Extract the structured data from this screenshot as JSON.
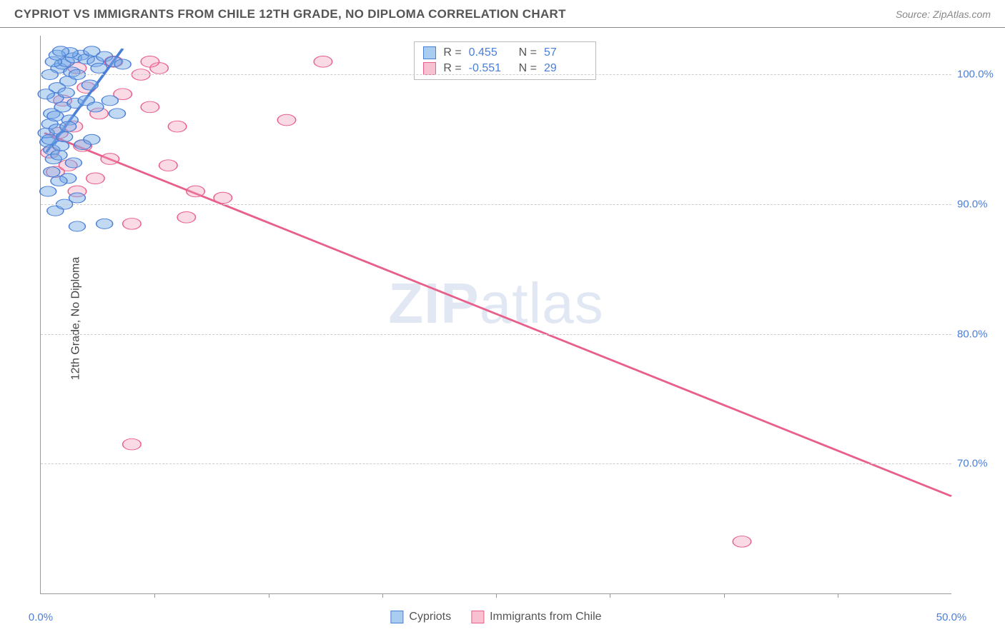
{
  "header": {
    "title": "CYPRIOT VS IMMIGRANTS FROM CHILE 12TH GRADE, NO DIPLOMA CORRELATION CHART",
    "source": "Source: ZipAtlas.com"
  },
  "axes": {
    "y_label": "12th Grade, No Diploma",
    "x_min": 0,
    "x_max": 50,
    "y_min": 60,
    "y_max": 103,
    "y_ticks": [
      70,
      80,
      90,
      100
    ],
    "x_ticks_minor": [
      6.25,
      12.5,
      18.75,
      25,
      31.25,
      37.5,
      43.75
    ],
    "x_ticks_labeled": [
      {
        "v": 0,
        "label": "0.0%"
      },
      {
        "v": 50,
        "label": "50.0%"
      }
    ]
  },
  "watermark": {
    "zip": "ZIP",
    "atlas": "atlas"
  },
  "stats": {
    "rows": [
      {
        "color_fill": "#a9cdf0",
        "color_border": "#4a7fd8",
        "r_label": "R =",
        "r": "0.455",
        "n_label": "N =",
        "n": "57"
      },
      {
        "color_fill": "#f7c1d1",
        "color_border": "#e85f8a",
        "r_label": "R =",
        "r": "-0.551",
        "n_label": "N =",
        "n": "29"
      }
    ]
  },
  "legend_bottom": [
    {
      "color_fill": "#a9cdf0",
      "color_border": "#4a7fd8",
      "label": "Cypriots"
    },
    {
      "color_fill": "#f7c1d1",
      "color_border": "#e85f8a",
      "label": "Immigrants from Chile"
    }
  ],
  "series": {
    "blue": {
      "fill": "rgba(120,170,230,0.45)",
      "stroke": "#4a7fd8",
      "radius": 9,
      "points": [
        [
          0.3,
          95.5
        ],
        [
          0.4,
          94.8
        ],
        [
          0.5,
          95.0
        ],
        [
          0.5,
          96.2
        ],
        [
          0.6,
          94.2
        ],
        [
          0.6,
          97.0
        ],
        [
          0.7,
          93.5
        ],
        [
          0.8,
          96.8
        ],
        [
          0.8,
          98.2
        ],
        [
          0.9,
          95.8
        ],
        [
          0.9,
          99.0
        ],
        [
          1.0,
          93.8
        ],
        [
          1.0,
          100.5
        ],
        [
          1.1,
          94.5
        ],
        [
          1.2,
          97.5
        ],
        [
          1.2,
          100.8
        ],
        [
          1.3,
          95.2
        ],
        [
          1.4,
          98.6
        ],
        [
          1.4,
          101.0
        ],
        [
          1.5,
          92.0
        ],
        [
          1.5,
          99.5
        ],
        [
          1.6,
          96.5
        ],
        [
          1.7,
          100.2
        ],
        [
          1.8,
          93.2
        ],
        [
          1.8,
          101.3
        ],
        [
          1.9,
          97.8
        ],
        [
          2.0,
          90.5
        ],
        [
          2.0,
          100.0
        ],
        [
          2.2,
          101.5
        ],
        [
          2.3,
          94.6
        ],
        [
          2.5,
          98.0
        ],
        [
          2.5,
          101.2
        ],
        [
          2.7,
          99.2
        ],
        [
          2.8,
          95.0
        ],
        [
          3.0,
          101.0
        ],
        [
          3.0,
          97.5
        ],
        [
          3.2,
          100.5
        ],
        [
          3.5,
          88.5
        ],
        [
          3.5,
          101.4
        ],
        [
          3.8,
          98.0
        ],
        [
          4.0,
          101.0
        ],
        [
          4.2,
          97.0
        ],
        [
          4.5,
          100.8
        ],
        [
          0.4,
          91.0
        ],
        [
          0.6,
          92.5
        ],
        [
          0.8,
          89.5
        ],
        [
          1.0,
          91.8
        ],
        [
          1.3,
          90.0
        ],
        [
          2.0,
          88.3
        ],
        [
          1.6,
          101.7
        ],
        [
          2.8,
          101.8
        ],
        [
          0.3,
          98.5
        ],
        [
          0.5,
          100.0
        ],
        [
          0.7,
          101.0
        ],
        [
          0.9,
          101.5
        ],
        [
          1.1,
          101.8
        ],
        [
          1.5,
          96.0
        ]
      ],
      "trend": {
        "x1": 0.3,
        "y1": 94.0,
        "x2": 4.5,
        "y2": 102.0,
        "width": 2.5
      }
    },
    "pink": {
      "fill": "rgba(240,150,180,0.35)",
      "stroke": "#e85f8a",
      "radius": 10,
      "points": [
        [
          0.5,
          94.0
        ],
        [
          0.8,
          92.5
        ],
        [
          1.0,
          95.5
        ],
        [
          1.2,
          98.0
        ],
        [
          1.5,
          93.0
        ],
        [
          1.8,
          96.0
        ],
        [
          2.0,
          91.0
        ],
        [
          2.3,
          94.5
        ],
        [
          2.5,
          99.0
        ],
        [
          3.0,
          92.0
        ],
        [
          3.2,
          97.0
        ],
        [
          3.8,
          93.5
        ],
        [
          4.5,
          98.5
        ],
        [
          5.0,
          88.5
        ],
        [
          5.5,
          100.0
        ],
        [
          6.0,
          97.5
        ],
        [
          6.5,
          100.5
        ],
        [
          7.0,
          93.0
        ],
        [
          7.5,
          96.0
        ],
        [
          8.0,
          89.0
        ],
        [
          8.5,
          91.0
        ],
        [
          10.0,
          90.5
        ],
        [
          6.0,
          101.0
        ],
        [
          4.0,
          101.0
        ],
        [
          13.5,
          96.5
        ],
        [
          15.5,
          101.0
        ],
        [
          5.0,
          71.5
        ],
        [
          38.5,
          64.0
        ],
        [
          2.0,
          100.5
        ]
      ],
      "trend": {
        "x1": 0.2,
        "y1": 95.5,
        "x2": 50,
        "y2": 67.5,
        "width": 2.5
      }
    }
  },
  "colors": {
    "grid": "#cccccc",
    "axis": "#999999",
    "tick_text": "#4a7fd8"
  }
}
